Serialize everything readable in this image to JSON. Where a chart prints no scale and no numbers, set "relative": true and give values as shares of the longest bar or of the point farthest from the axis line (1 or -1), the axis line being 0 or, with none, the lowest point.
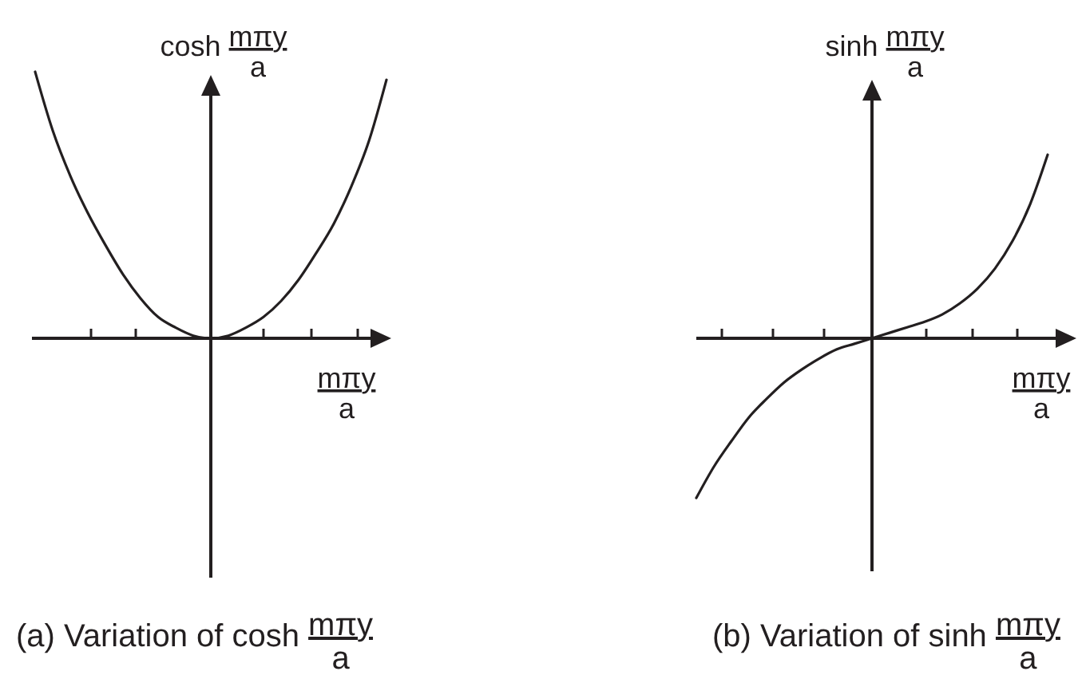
{
  "chart_data": [
    {
      "type": "line",
      "title": "(a) Variation of cosh $^{mπy}$$_{a}$",
      "xlabel": "$^{mπy}$$_{a}$",
      "ylabel": "cosh $^{mπy}$$_{a}$",
      "relative": true,
      "categories": [
        null,
        null,
        null,
        null,
        null,
        null,
        null,
        null,
        null,
        null,
        null,
        null,
        null,
        null,
        null,
        null,
        null,
        null,
        null,
        null,
        null
      ],
      "color": "#231f20",
      "values": [
        1,
        0.78,
        0.61,
        0.47,
        0.35,
        0.24,
        0.15,
        0.08,
        0.04,
        0.01,
        0,
        0.01,
        0.04,
        0.08,
        0.14,
        0.22,
        0.32,
        0.43,
        0.57,
        0.74,
        0.97
      ]
    },
    {
      "type": "line",
      "title": "(b) Variation of sinh $^{mπy}$$_{a}$",
      "xlabel": "$^{mπy}$$_{a}$",
      "ylabel": "sinh $^{mπy}$$_{a}$",
      "relative": true,
      "categories": [
        null,
        null,
        null,
        null,
        null,
        null,
        null,
        null,
        null,
        null,
        null,
        null,
        null,
        null,
        null,
        null,
        null,
        null,
        null,
        null,
        null
      ],
      "color": "#231f20",
      "values": [
        -0.87,
        -0.7,
        -0.56,
        -0.43,
        -0.33,
        -0.24,
        -0.17,
        -0.11,
        -0.06,
        -0.03,
        0,
        0.03,
        0.06,
        0.09,
        0.13,
        0.19,
        0.27,
        0.38,
        0.53,
        0.73,
        1
      ]
    }
  ]
}
